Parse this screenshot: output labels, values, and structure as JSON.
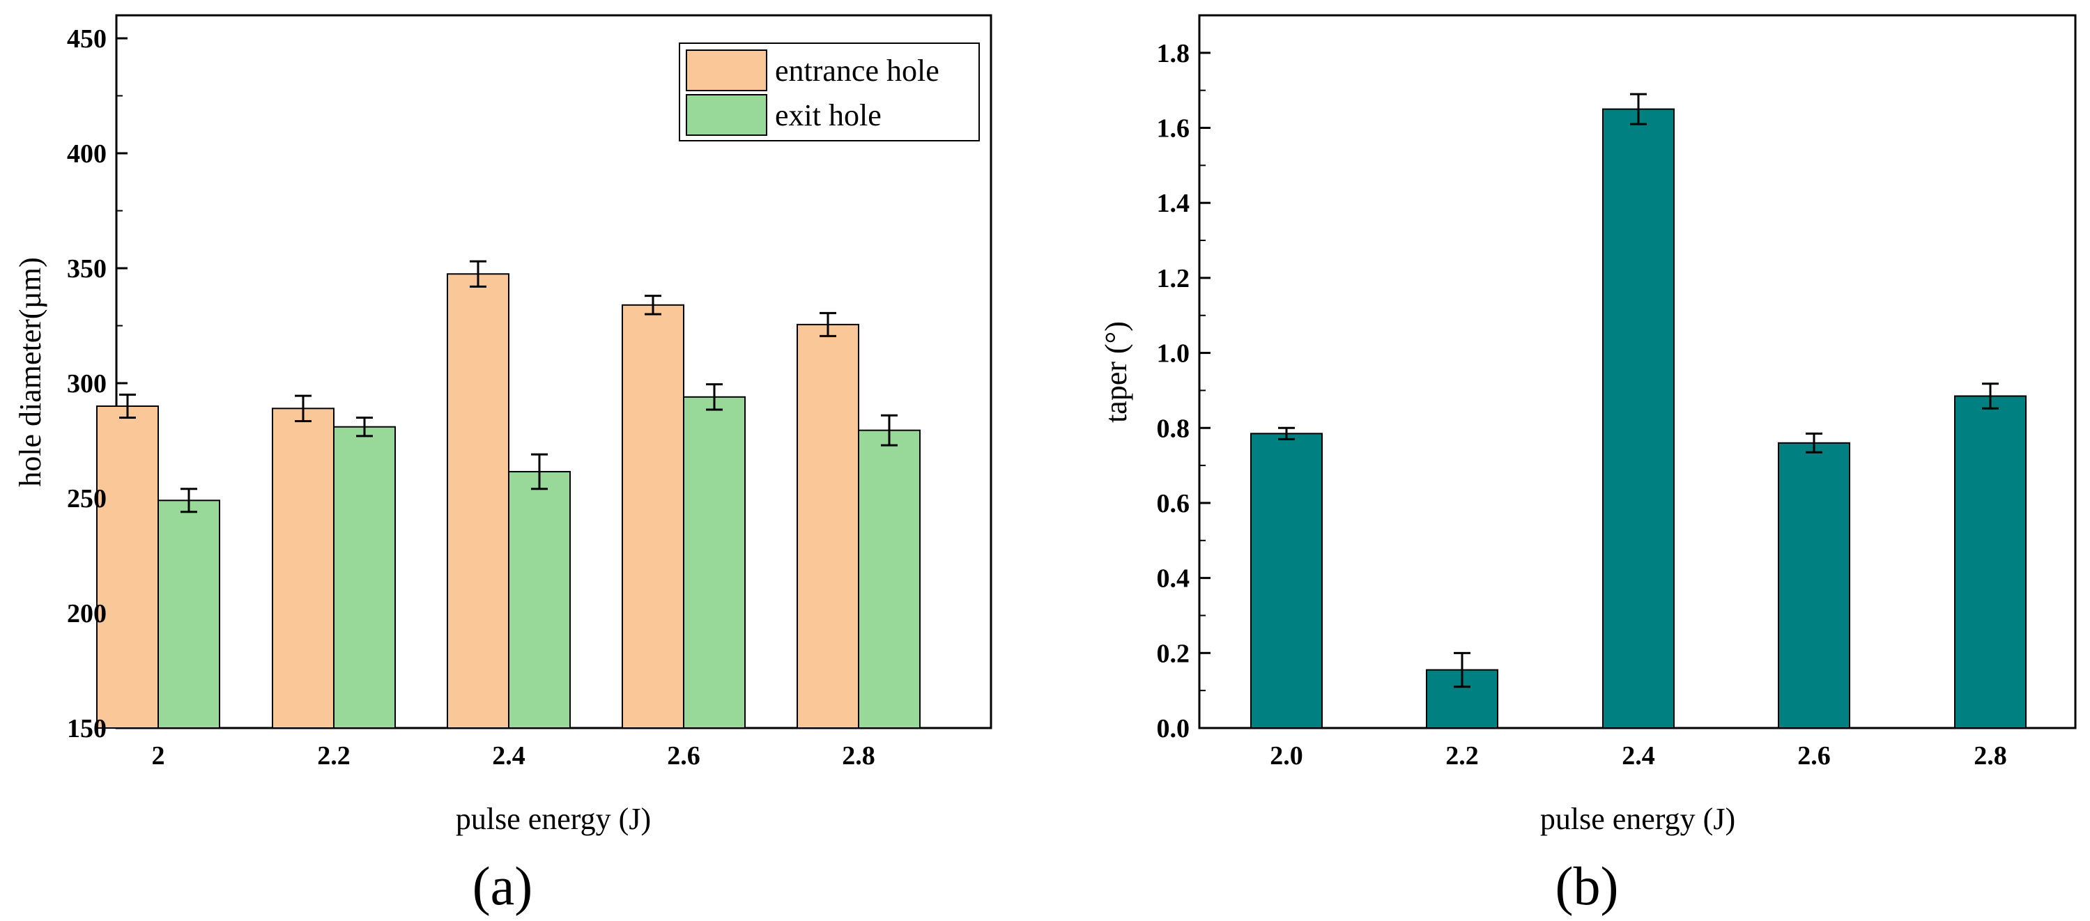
{
  "chart_data": [
    {
      "type": "bar",
      "panel_label": "(a)",
      "title": "",
      "xlabel": "pulse energy (J)",
      "ylabel": "hole diameter(µm)",
      "categories": [
        "2",
        "2.2",
        "2.4",
        "2.6",
        "2.8"
      ],
      "ylim": [
        150,
        460
      ],
      "yticks": [
        "150",
        "200",
        "250",
        "300",
        "350",
        "400",
        "450"
      ],
      "ytick_values": [
        150,
        200,
        250,
        300,
        350,
        400,
        450
      ],
      "legend_position": "top-right",
      "series": [
        {
          "name": "entrance hole",
          "color": "#FAC898",
          "values": [
            290,
            289,
            347.5,
            334,
            325.5
          ],
          "errors": [
            5,
            5.5,
            5.5,
            4,
            5
          ]
        },
        {
          "name": "exit hole",
          "color": "#98D99A",
          "values": [
            249,
            281,
            261.5,
            294,
            279.5
          ],
          "errors": [
            5,
            4,
            7.5,
            5.5,
            6.5
          ]
        }
      ]
    },
    {
      "type": "bar",
      "panel_label": "(b)",
      "title": "",
      "xlabel": "pulse energy (J)",
      "ylabel": "taper (°)",
      "categories": [
        "2.0",
        "2.2",
        "2.4",
        "2.6",
        "2.8"
      ],
      "ylim": [
        0,
        1.9
      ],
      "yticks": [
        "0.0",
        "0.2",
        "0.4",
        "0.6",
        "0.8",
        "1.0",
        "1.2",
        "1.4",
        "1.6",
        "1.8"
      ],
      "ytick_values": [
        0,
        0.2,
        0.4,
        0.6,
        0.8,
        1.0,
        1.2,
        1.4,
        1.6,
        1.8
      ],
      "series": [
        {
          "name": "taper",
          "color": "#008080",
          "values": [
            0.785,
            0.155,
            1.65,
            0.76,
            0.885
          ],
          "errors": [
            0.015,
            0.045,
            0.04,
            0.025,
            0.033
          ]
        }
      ]
    }
  ]
}
